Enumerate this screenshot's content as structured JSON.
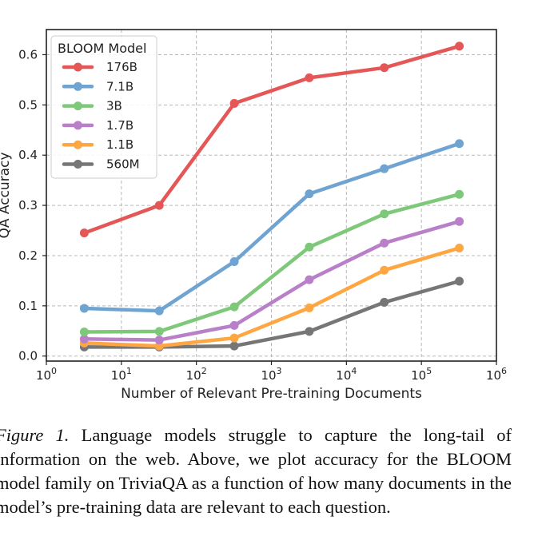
{
  "chart_data": {
    "type": "line",
    "xlabel": "Number of Relevant Pre-training Documents",
    "ylabel": "QA Accuracy",
    "xscale": "log",
    "xlim": [
      1,
      1000000
    ],
    "ylim": [
      -0.01,
      0.65
    ],
    "xticks": [
      {
        "value": 1,
        "base": "10",
        "exp": "0"
      },
      {
        "value": 10,
        "base": "10",
        "exp": "1"
      },
      {
        "value": 100,
        "base": "10",
        "exp": "2"
      },
      {
        "value": 1000,
        "base": "10",
        "exp": "3"
      },
      {
        "value": 10000,
        "base": "10",
        "exp": "4"
      },
      {
        "value": 100000,
        "base": "10",
        "exp": "5"
      },
      {
        "value": 1000000,
        "base": "10",
        "exp": "6"
      }
    ],
    "yticks": [
      {
        "value": 0.0,
        "label": "0.0"
      },
      {
        "value": 0.1,
        "label": "0.1"
      },
      {
        "value": 0.2,
        "label": "0.2"
      },
      {
        "value": 0.3,
        "label": "0.3"
      },
      {
        "value": 0.4,
        "label": "0.4"
      },
      {
        "value": 0.5,
        "label": "0.5"
      },
      {
        "value": 0.6,
        "label": "0.6"
      }
    ],
    "grid": true,
    "legend": {
      "title": "BLOOM Model",
      "placement": "top-left"
    },
    "x": [
      3.2,
      32,
      320,
      3200,
      32000,
      320000
    ],
    "series": [
      {
        "name": "176B",
        "color": "#e45756",
        "values": [
          0.245,
          0.3,
          0.503,
          0.554,
          0.574,
          0.617
        ]
      },
      {
        "name": "7.1B",
        "color": "#6fa3d2",
        "values": [
          0.095,
          0.09,
          0.188,
          0.323,
          0.373,
          0.423
        ]
      },
      {
        "name": "3B",
        "color": "#7ec87a",
        "values": [
          0.048,
          0.049,
          0.098,
          0.217,
          0.283,
          0.322
        ]
      },
      {
        "name": "1.7B",
        "color": "#b97fc9",
        "values": [
          0.034,
          0.032,
          0.061,
          0.152,
          0.225,
          0.268
        ]
      },
      {
        "name": "1.1B",
        "color": "#fea742",
        "values": [
          0.026,
          0.02,
          0.036,
          0.096,
          0.171,
          0.215
        ]
      },
      {
        "name": "560M",
        "color": "#767676",
        "values": [
          0.018,
          0.018,
          0.02,
          0.049,
          0.107,
          0.149
        ]
      }
    ]
  },
  "caption": {
    "figure_label": "Figure 1.",
    "text": "Language models struggle to capture the long-tail of information on the web. Above, we plot accuracy for the BLOOM model family on TriviaQA as a function of how many documents in the model’s pre-training data are relevant to each question."
  }
}
